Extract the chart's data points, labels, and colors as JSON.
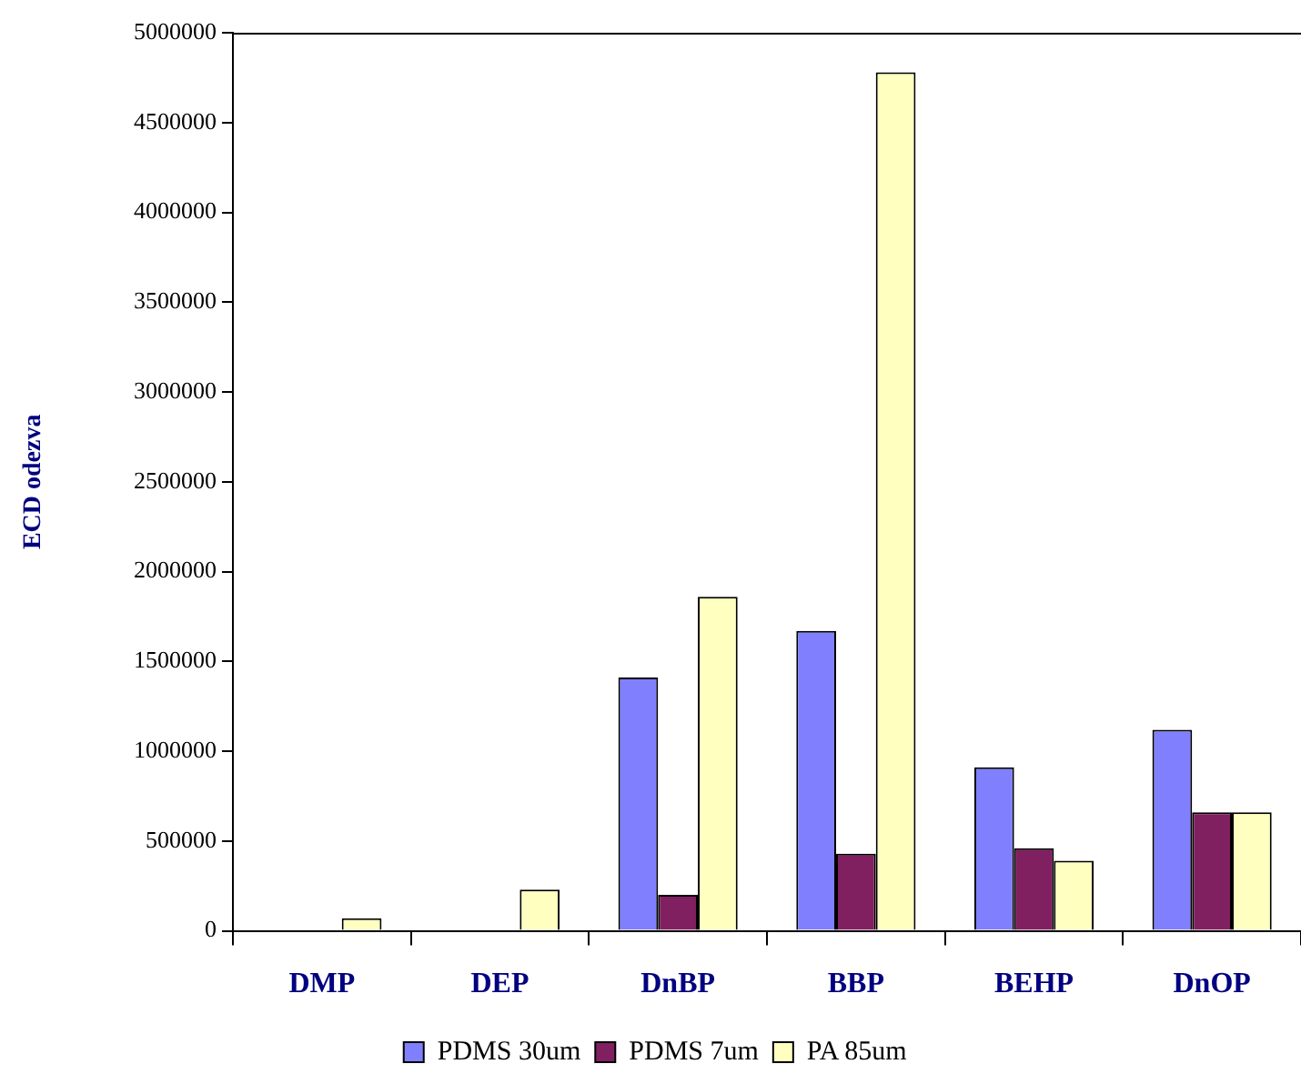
{
  "chart_data": {
    "type": "bar",
    "ylabel": "ECD odezva",
    "categories": [
      "DMP",
      "DEP",
      "DnBP",
      "BBP",
      "BEHP",
      "DnOP"
    ],
    "series": [
      {
        "name": "PDMS 30um",
        "color": "#8080ff",
        "values": [
          0,
          0,
          1410000,
          1670000,
          910000,
          1120000
        ]
      },
      {
        "name": "PDMS 7um",
        "color": "#802060",
        "values": [
          0,
          0,
          200000,
          430000,
          460000,
          660000
        ]
      },
      {
        "name": "PA 85um",
        "color": "#ffffc0",
        "values": [
          70000,
          230000,
          1860000,
          4780000,
          390000,
          660000
        ]
      }
    ],
    "ylim": [
      0,
      5000000
    ],
    "yticks": [
      0,
      500000,
      1000000,
      1500000,
      2000000,
      2500000,
      3000000,
      3500000,
      4000000,
      4500000,
      5000000
    ],
    "grid": false,
    "legend": "bottom"
  }
}
